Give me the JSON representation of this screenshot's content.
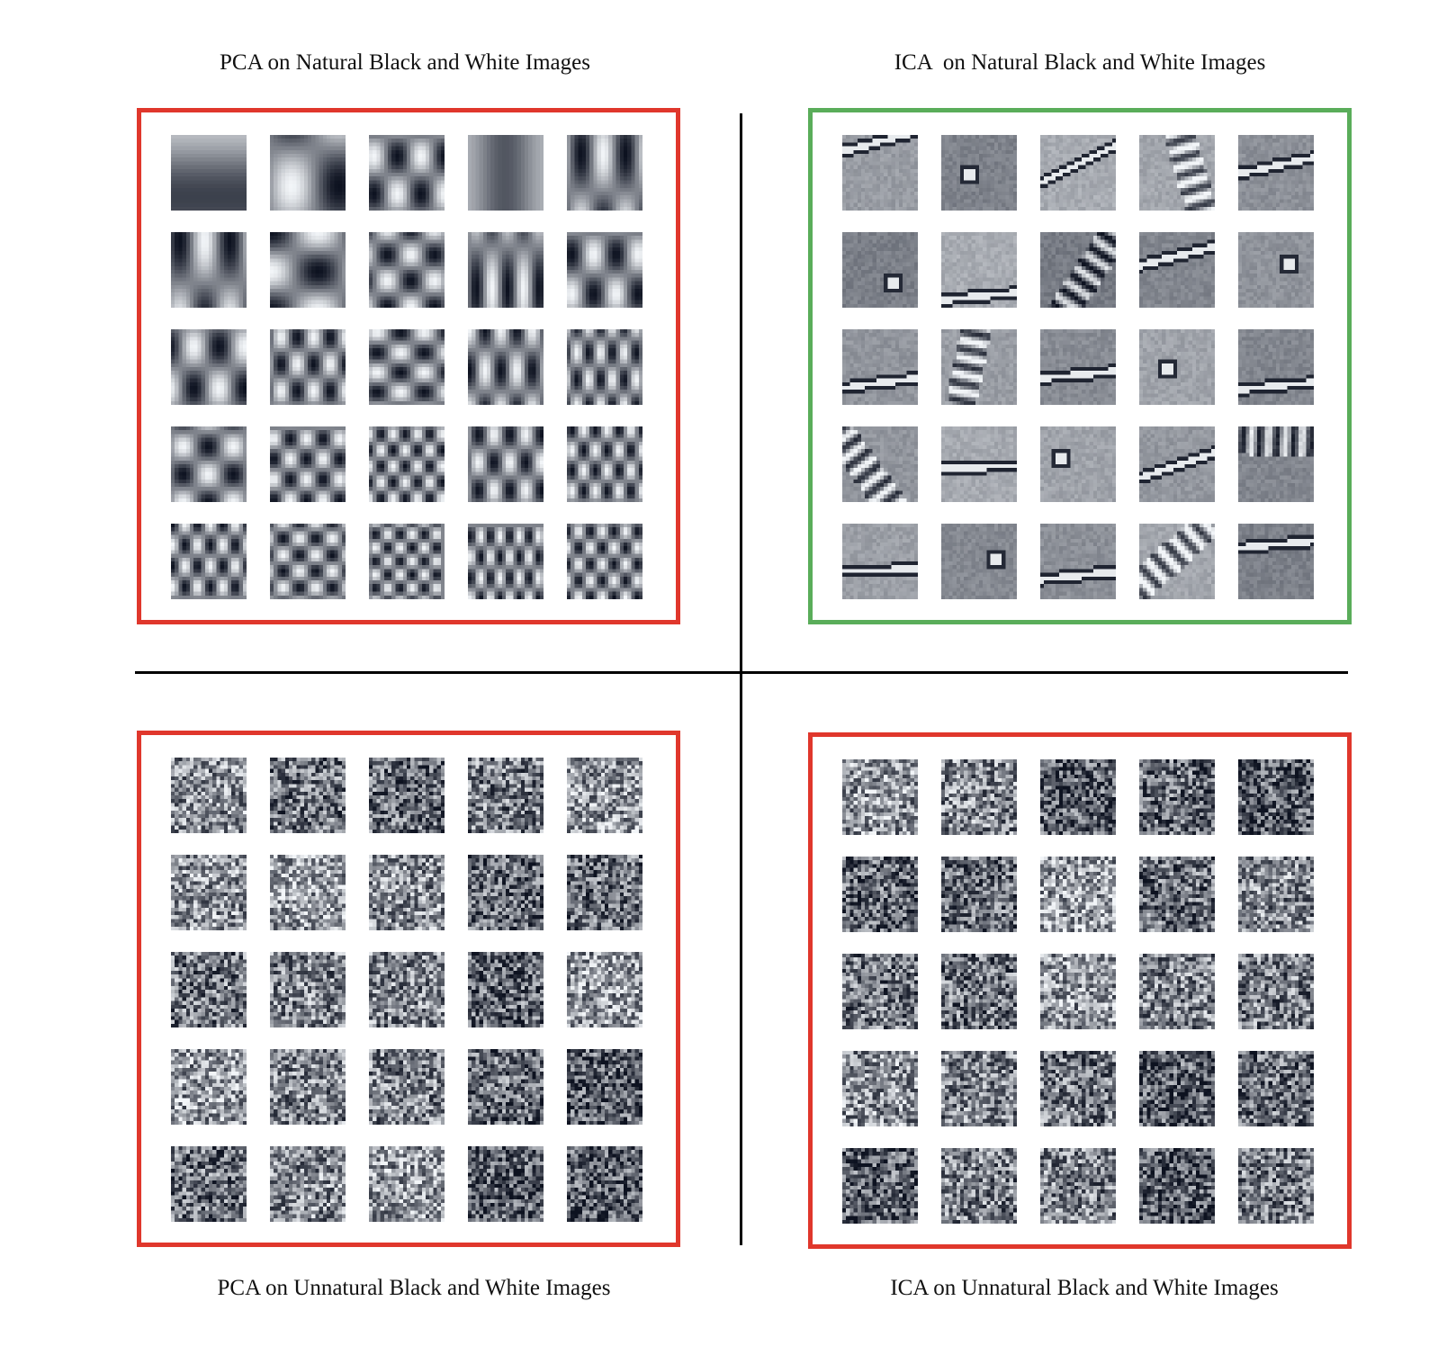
{
  "titles": {
    "top_left": "PCA on Natural Black and White Images",
    "top_right": "ICA  on Natural Black and White Images",
    "bottom_left": "PCA on Unnatural Black and White Images",
    "bottom_right": "ICA on Unnatural Black and White Images"
  },
  "colors": {
    "red": "#e0372c",
    "green": "#5aad5a",
    "divider": "#000000",
    "palette_dark": "#0d1220",
    "palette_light": "#f2f5f8"
  },
  "panels": {
    "top_left": {
      "outline": "red",
      "kind": "pca-natural",
      "rows": 5,
      "cols": 5
    },
    "top_right": {
      "outline": "green",
      "kind": "ica-natural",
      "rows": 5,
      "cols": 5
    },
    "bottom_left": {
      "outline": "red",
      "kind": "noise",
      "rows": 5,
      "cols": 5
    },
    "bottom_right": {
      "outline": "red",
      "kind": "noise",
      "rows": 5,
      "cols": 5
    }
  }
}
